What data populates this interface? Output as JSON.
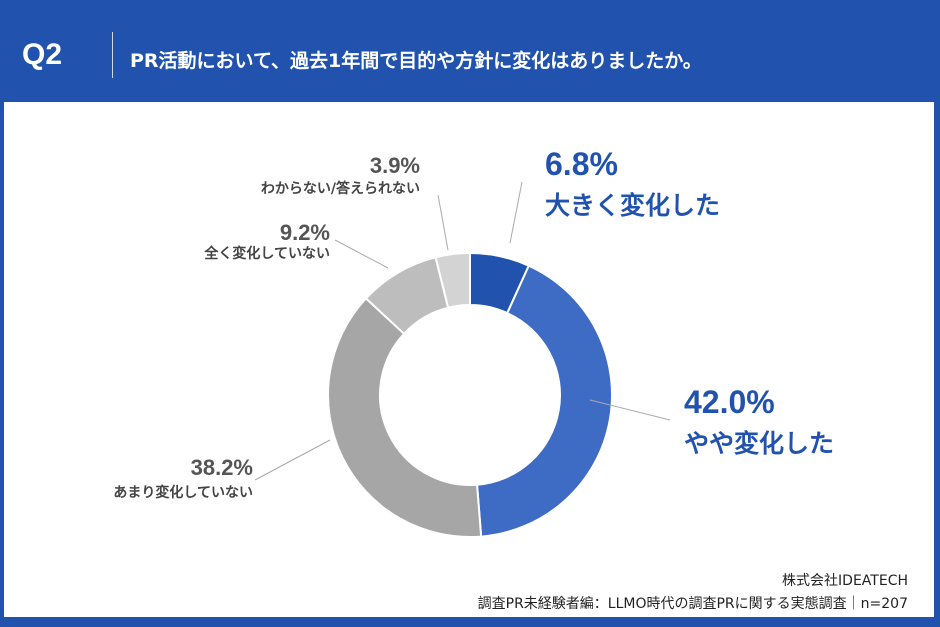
{
  "header": {
    "q": "Q2",
    "title": "PR活動において、過去1年間で目的や方針に変化はありましたか。"
  },
  "chart_data": {
    "type": "pie",
    "donut": true,
    "categories": [
      "大きく変化した",
      "やや変化した",
      "あまり変化していない",
      "全く変化していない",
      "わからない/答えられない"
    ],
    "values": [
      6.8,
      42.0,
      38.2,
      9.2,
      3.9
    ],
    "labels": [
      "6.8%",
      "42.0%",
      "38.2%",
      "9.2%",
      "3.9%"
    ],
    "colors": [
      "#2153ae",
      "#3e6cc4",
      "#a6a6a6",
      "#bdbdbd",
      "#d3d3d3"
    ]
  },
  "footer": {
    "company": "株式会社IDEATECH",
    "source": "調査PR未経験者編：LLMO時代の調査PRに関する実態調査｜n=207"
  }
}
